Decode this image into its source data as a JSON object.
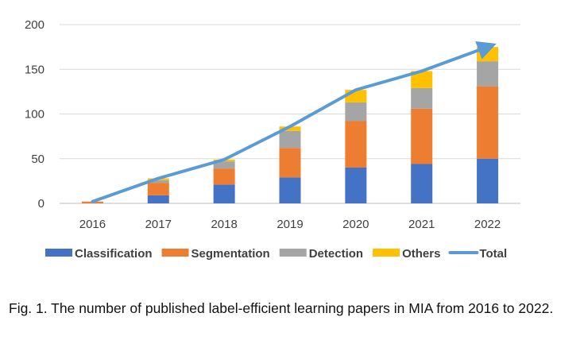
{
  "caption": "Fig. 1. The number of published label-efficient learning papers in MIA from 2016 to 2022.",
  "chart_data": {
    "type": "bar",
    "stacked": true,
    "categories": [
      "2016",
      "2017",
      "2018",
      "2019",
      "2020",
      "2021",
      "2022"
    ],
    "series": [
      {
        "name": "Classification",
        "type": "bar",
        "color": "#4472C4",
        "values": [
          0,
          9,
          21,
          29,
          40,
          44,
          50
        ]
      },
      {
        "name": "Segmentation",
        "type": "bar",
        "color": "#ED7D31",
        "values": [
          2,
          14,
          18,
          33,
          52,
          62,
          81
        ]
      },
      {
        "name": "Detection",
        "type": "bar",
        "color": "#A5A5A5",
        "values": [
          0,
          3,
          8,
          19,
          21,
          23,
          28
        ]
      },
      {
        "name": "Others",
        "type": "bar",
        "color": "#FFC000",
        "values": [
          0,
          2,
          2,
          5,
          14,
          19,
          16
        ]
      },
      {
        "name": "Total",
        "type": "line",
        "color": "#5B9BD5",
        "values": [
          2,
          28,
          49,
          86,
          127,
          148,
          175
        ]
      }
    ],
    "y_ticks": [
      "0",
      "50",
      "100",
      "150",
      "200"
    ],
    "ylim": [
      0,
      200
    ],
    "grid": true,
    "legend_position": "bottom",
    "xlabel": "",
    "ylabel": ""
  }
}
